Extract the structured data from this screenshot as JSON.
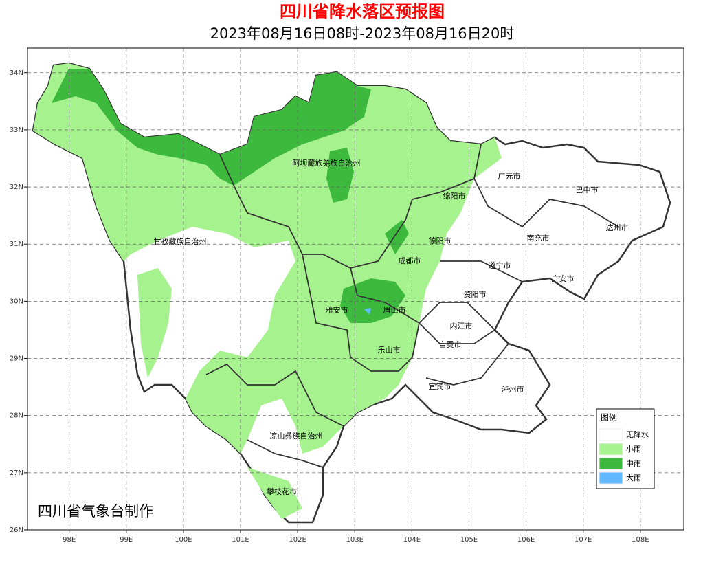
{
  "map": {
    "title": "四川省降水落区预报图",
    "subtitle": "2023年08月16日08时-2023年08月16日20时",
    "xlim": [
      97.27,
      108.76
    ],
    "ylim": [
      26,
      34.43
    ],
    "xticks": [
      {
        "value": 98,
        "label": "98E"
      },
      {
        "value": 99,
        "label": "99E"
      },
      {
        "value": 100,
        "label": "100E"
      },
      {
        "value": 101,
        "label": "101E"
      },
      {
        "value": 102,
        "label": "102E"
      },
      {
        "value": 103,
        "label": "103E"
      },
      {
        "value": 104,
        "label": "104E"
      },
      {
        "value": 105,
        "label": "105E"
      },
      {
        "value": 106,
        "label": "106E"
      },
      {
        "value": 107,
        "label": "107E"
      },
      {
        "value": 108,
        "label": "108E"
      }
    ],
    "yticks": [
      {
        "value": 26,
        "label": "26N"
      },
      {
        "value": 27,
        "label": "27N"
      },
      {
        "value": 28,
        "label": "28N"
      },
      {
        "value": 29,
        "label": "29N"
      },
      {
        "value": 30,
        "label": "30N"
      },
      {
        "value": 31,
        "label": "31N"
      },
      {
        "value": 32,
        "label": "32N"
      },
      {
        "value": 33,
        "label": "33N"
      },
      {
        "value": 34,
        "label": "34N"
      }
    ],
    "cities": [
      "阿坝藏族羌族自治州",
      "广元市",
      "巴中市",
      "绵阳市",
      "达州市",
      "甘孜藏族自治州",
      "德阳市",
      "南充市",
      "成都市",
      "遂宁市",
      "广安市",
      "资阳市",
      "雅安市",
      "眉山市",
      "内江市",
      "自贡市",
      "乐山市",
      "宜宾市",
      "泸州市",
      "凉山彝族自治州",
      "攀枝花市"
    ],
    "legend": {
      "title": "图例",
      "items": [
        {
          "label": "无降水",
          "color": "#ffffff"
        },
        {
          "label": "小雨",
          "color": "#a6f28f"
        },
        {
          "label": "中雨",
          "color": "#3dba3d"
        },
        {
          "label": "大雨",
          "color": "#61b8ff"
        }
      ]
    },
    "credit": "四川省气象台制作"
  }
}
